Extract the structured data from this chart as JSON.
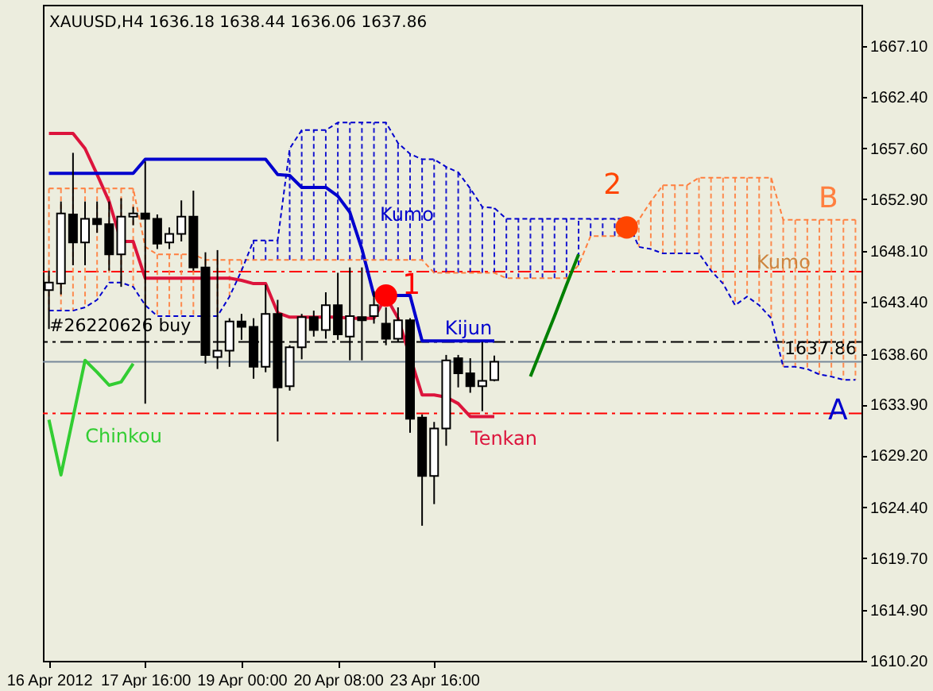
{
  "chart_data": {
    "type": "candlestick",
    "title": "XAUUSD,H4  1636.18 1638.44 1636.06 1637.86",
    "categories": [
      "16 Apr 2012",
      null,
      null,
      null,
      null,
      null,
      null,
      null,
      "17 Apr 16:00",
      null,
      null,
      null,
      null,
      null,
      null,
      null,
      "19 Apr 00:00",
      null,
      null,
      null,
      null,
      null,
      null,
      null,
      "20 Apr 08:00",
      null,
      null,
      null,
      null,
      null,
      null,
      null,
      "23 Apr 16:00",
      null,
      null,
      null,
      null,
      null,
      null,
      null,
      null,
      null,
      null,
      null,
      null,
      null,
      null,
      null,
      null,
      null,
      null,
      null,
      null,
      null,
      null,
      null,
      null,
      null,
      null,
      null,
      null,
      null,
      null,
      null,
      null,
      null,
      null,
      null
    ],
    "ohlc": [
      [
        1644.5,
        1646.3,
        1640.9,
        1645.2
      ],
      [
        1645.1,
        1652.7,
        1644.1,
        1651.6
      ],
      [
        1651.5,
        1657.2,
        1646.8,
        1648.9
      ],
      [
        1648.9,
        1652.7,
        1646.8,
        1651.1
      ],
      [
        1651.1,
        1652.7,
        1649.8,
        1650.6
      ],
      [
        1650.6,
        1652.7,
        1646.3,
        1647.8
      ],
      [
        1647.8,
        1653.0,
        1644.8,
        1651.3
      ],
      [
        1651.3,
        1652.2,
        1650.5,
        1651.6
      ],
      [
        1651.6,
        1656.4,
        1634.0,
        1651.1
      ],
      [
        1651.1,
        1651.5,
        1648.3,
        1648.8
      ],
      [
        1648.9,
        1650.3,
        1648.3,
        1649.7
      ],
      [
        1649.7,
        1652.8,
        1649.0,
        1651.3
      ],
      [
        1651.3,
        1653.7,
        1646.3,
        1646.6
      ],
      [
        1646.6,
        1648.0,
        1637.7,
        1638.5
      ],
      [
        1638.3,
        1648.2,
        1637.2,
        1638.9
      ],
      [
        1638.9,
        1641.9,
        1637.4,
        1641.6
      ],
      [
        1641.6,
        1642.3,
        1639.9,
        1641.1
      ],
      [
        1641.1,
        1641.9,
        1636.3,
        1637.4
      ],
      [
        1637.4,
        1645.0,
        1636.9,
        1642.3
      ],
      [
        1642.3,
        1643.6,
        1630.5,
        1635.5
      ],
      [
        1635.6,
        1639.4,
        1635.2,
        1639.2
      ],
      [
        1639.2,
        1642.3,
        1638.1,
        1642.0
      ],
      [
        1642.0,
        1642.6,
        1640.2,
        1640.8
      ],
      [
        1640.8,
        1644.3,
        1640.0,
        1643.1
      ],
      [
        1643.1,
        1646.1,
        1639.9,
        1640.4
      ],
      [
        1640.2,
        1646.6,
        1638.0,
        1642.1
      ],
      [
        1642.0,
        1646.6,
        1638.0,
        1641.7
      ],
      [
        1642.1,
        1644.4,
        1641.4,
        1643.1
      ],
      [
        1641.4,
        1642.9,
        1639.4,
        1640.0
      ],
      [
        1640.0,
        1642.9,
        1639.7,
        1641.7
      ],
      [
        1641.7,
        1641.9,
        1631.3,
        1632.6
      ],
      [
        1632.7,
        1633.0,
        1622.7,
        1627.3
      ],
      [
        1627.3,
        1632.3,
        1624.7,
        1631.7
      ],
      [
        1631.7,
        1638.5,
        1630.1,
        1638.0
      ],
      [
        1638.2,
        1638.5,
        1635.5,
        1636.8
      ],
      [
        1636.8,
        1638.2,
        1635.0,
        1635.6
      ],
      [
        1635.6,
        1639.7,
        1633.3,
        1636.1
      ],
      [
        1636.18,
        1638.44,
        1636.06,
        1637.86
      ],
      null,
      null,
      null,
      null,
      null,
      null,
      null,
      null,
      null,
      null,
      null,
      null,
      null,
      null,
      null,
      null,
      null,
      null,
      null,
      null,
      null,
      null,
      null,
      null,
      null,
      null,
      null,
      null,
      null,
      null
    ],
    "series": [
      {
        "name": "Tenkan",
        "type": "line",
        "color": "#dc143c",
        "values": [
          1659.0,
          1659.0,
          1659.0,
          1657.6,
          1655.2,
          1652.7,
          1649.0,
          1649.0,
          1645.6,
          1645.6,
          1645.6,
          1645.6,
          1645.6,
          1645.6,
          1645.6,
          1645.6,
          1645.4,
          1645.1,
          1645.1,
          1642.4,
          1642.0,
          1642.0,
          1642.0,
          1642.0,
          1642.0,
          1641.9,
          1641.9,
          1641.9,
          1643.9,
          1641.9,
          null,
          1634.8,
          1634.8,
          1634.6,
          1634.0,
          1632.8,
          1632.8,
          1632.8,
          null,
          null,
          null,
          null,
          null,
          null,
          null,
          null,
          null,
          null,
          null,
          null,
          null,
          null,
          null,
          null,
          null,
          null,
          null,
          null,
          null,
          null,
          null,
          null,
          null,
          null,
          null,
          null,
          null,
          null
        ]
      },
      {
        "name": "Kijun",
        "type": "line",
        "color": "#0000cd",
        "values": [
          1655.3,
          1655.3,
          1655.3,
          1655.3,
          1655.3,
          1655.3,
          1655.3,
          1655.3,
          1656.6,
          1656.6,
          1656.6,
          1656.6,
          1656.6,
          1656.6,
          1656.6,
          1656.6,
          1656.6,
          1656.6,
          1656.6,
          1655.2,
          1655.1,
          1654.0,
          1654.0,
          1654.0,
          1653.2,
          1651.7,
          1648.3,
          1644.0,
          1644.0,
          1644.0,
          1644.0,
          1639.8,
          1639.8,
          1639.8,
          1639.8,
          1639.8,
          1639.8,
          1639.8,
          null,
          null,
          null,
          null,
          null,
          null,
          null,
          null,
          null,
          null,
          null,
          null,
          null,
          null,
          null,
          null,
          null,
          null,
          null,
          null,
          null,
          null,
          null,
          null,
          null,
          null,
          null,
          null,
          null,
          null
        ]
      },
      {
        "name": "Chinkou",
        "type": "line",
        "color": "#32cd32",
        "values": [
          1632.5,
          1627.4,
          1632.7,
          1638.0,
          1636.9,
          1635.7,
          1636.0,
          1637.7,
          null,
          null,
          null,
          null,
          null,
          null,
          null,
          null,
          null,
          null,
          null,
          null,
          null,
          null,
          null,
          null,
          null,
          null,
          null,
          null,
          null,
          null,
          null,
          null,
          null,
          null,
          null,
          null,
          null,
          null,
          null,
          null,
          null,
          null,
          null,
          null,
          null,
          null,
          null,
          null,
          null,
          null,
          null,
          null,
          null,
          null,
          null,
          null,
          null,
          null,
          null,
          null,
          null,
          null,
          null,
          null,
          null,
          null,
          null,
          null
        ]
      },
      {
        "name": "B",
        "type": "line",
        "color": "#ff7f3f",
        "line_style": "dashed",
        "values": [
          1653.9,
          1653.9,
          1653.9,
          1653.9,
          1653.9,
          1653.9,
          1653.9,
          1653.9,
          1648.5,
          1647.8,
          1647.8,
          1647.8,
          1647.8,
          1647.3,
          1647.3,
          1647.3,
          1647.3,
          1647.3,
          1647.3,
          1647.3,
          1647.3,
          1647.3,
          1647.3,
          1647.3,
          1647.3,
          1647.3,
          1647.3,
          1647.3,
          1647.3,
          1647.3,
          1647.3,
          1647.3,
          1646.1,
          1646.1,
          1646.1,
          1646.1,
          1646.1,
          1646.1,
          1645.6,
          1645.6,
          1645.6,
          1645.6,
          1645.6,
          1645.6,
          1646.8,
          1649.5,
          1649.5,
          1649.5,
          1649.5,
          1651.0,
          1652.7,
          1654.2,
          1654.2,
          1654.2,
          1654.9,
          1654.9,
          1654.9,
          1654.9,
          1654.9,
          1654.9,
          1654.9,
          1651.0,
          1651.0,
          1651.0,
          1651.0,
          1651.0,
          1651.0,
          1651.0
        ]
      },
      {
        "name": "A",
        "type": "line",
        "color": "#0000cd",
        "line_style": "dashed",
        "values": [
          1642.6,
          1642.6,
          1642.6,
          1642.9,
          1643.6,
          1645.2,
          1645.2,
          1644.8,
          1643.1,
          1642.1,
          1642.1,
          1642.1,
          1642.1,
          1642.1,
          1642.1,
          1643.9,
          1646.3,
          1649.1,
          1649.1,
          1649.1,
          1657.6,
          1659.3,
          1659.3,
          1659.3,
          1660.0,
          1660.0,
          1660.0,
          1660.0,
          1660.0,
          1658.1,
          1657.1,
          1656.6,
          1656.6,
          1655.9,
          1655.4,
          1653.9,
          1652.2,
          1652.1,
          1651.1,
          1651.1,
          1651.1,
          1651.1,
          1651.1,
          1651.1,
          1651.1,
          1651.1,
          1651.1,
          1651.1,
          1651.1,
          1648.5,
          1648.3,
          1647.9,
          1647.9,
          1647.9,
          1647.9,
          1646.3,
          1645.1,
          1643.1,
          1643.9,
          1643.1,
          1641.9,
          1637.4,
          1637.4,
          1637.2,
          1636.7,
          1636.5,
          1636.2,
          1636.2
        ]
      },
      {
        "type": "line",
        "color": "#008000",
        "values": [
          null,
          null,
          null,
          null,
          null,
          null,
          null,
          null,
          null,
          null,
          null,
          null,
          null,
          null,
          null,
          null,
          null,
          null,
          null,
          null,
          null,
          null,
          null,
          null,
          null,
          null,
          null,
          null,
          null,
          null,
          null,
          null,
          null,
          null,
          null,
          null,
          null,
          null,
          null,
          null,
          1636.5,
          1639.3,
          1642.1,
          1645.0,
          1647.8,
          null,
          null,
          null,
          null,
          null,
          null,
          null,
          null,
          null,
          null,
          null,
          null,
          null,
          null,
          null,
          null,
          null,
          null,
          null,
          null,
          null,
          null,
          null
        ]
      },
      {
        "name": "1",
        "type": "scatter",
        "color": "#ff0000",
        "marker": "circle",
        "values": [
          null,
          null,
          null,
          null,
          null,
          null,
          null,
          null,
          null,
          null,
          null,
          null,
          null,
          null,
          null,
          null,
          null,
          null,
          null,
          null,
          null,
          null,
          null,
          null,
          null,
          null,
          null,
          null,
          1644.0,
          null,
          null,
          null,
          null,
          null,
          null,
          null,
          null,
          null,
          null,
          null,
          null,
          null,
          null,
          null,
          null,
          null,
          null,
          null,
          null,
          null,
          null,
          null,
          null,
          null,
          null,
          null,
          null,
          null,
          null,
          null,
          null,
          null,
          null,
          null,
          null,
          null,
          null,
          null
        ]
      },
      {
        "name": "2",
        "type": "scatter",
        "color": "#ff4500",
        "marker": "circle",
        "values": [
          null,
          null,
          null,
          null,
          null,
          null,
          null,
          null,
          null,
          null,
          null,
          null,
          null,
          null,
          null,
          null,
          null,
          null,
          null,
          null,
          null,
          null,
          null,
          null,
          null,
          null,
          null,
          null,
          null,
          null,
          null,
          null,
          null,
          null,
          null,
          null,
          null,
          null,
          null,
          null,
          null,
          null,
          null,
          null,
          null,
          null,
          null,
          null,
          1650.3,
          null,
          null,
          null,
          null,
          null,
          null,
          null,
          null,
          null,
          null,
          null,
          null,
          null,
          null,
          null,
          null,
          null,
          null,
          null
        ]
      }
    ],
    "ylim": [
      1610.2,
      1670.9
    ],
    "yticks": [
      {
        "value": 1610.2,
        "label": "1610.20"
      },
      {
        "value": 1614.9,
        "label": "1614.90"
      },
      {
        "value": 1619.7,
        "label": "1619.70"
      },
      {
        "value": 1624.4,
        "label": "1624.40"
      },
      {
        "value": 1629.2,
        "label": "1629.20"
      },
      {
        "value": 1633.9,
        "label": "1633.90"
      },
      {
        "value": 1638.6,
        "label": "1638.60"
      },
      {
        "value": 1643.4,
        "label": "1643.40"
      },
      {
        "value": 1648.1,
        "label": "1648.10"
      },
      {
        "value": 1652.9,
        "label": "1652.90"
      },
      {
        "value": 1657.6,
        "label": "1657.60"
      },
      {
        "value": 1662.4,
        "label": "1662.40"
      },
      {
        "value": 1667.1,
        "label": "1667.10"
      }
    ],
    "ref_lines": [
      {
        "axis": "y",
        "value": 1646.2,
        "color": "#ff0000",
        "line_style": "dashed"
      },
      {
        "axis": "y",
        "value": 1639.7,
        "label": "#26220626 buy",
        "color": "#000000",
        "line_style": "dashed"
      },
      {
        "axis": "y",
        "value": 1637.86,
        "label": "1637.86",
        "color": "#778899",
        "line_style": "solid"
      },
      {
        "axis": "y",
        "value": 1633.1,
        "color": "#ff0000",
        "line_style": "dashed"
      }
    ],
    "annotations": [
      "Kumo",
      "Kumo"
    ]
  }
}
